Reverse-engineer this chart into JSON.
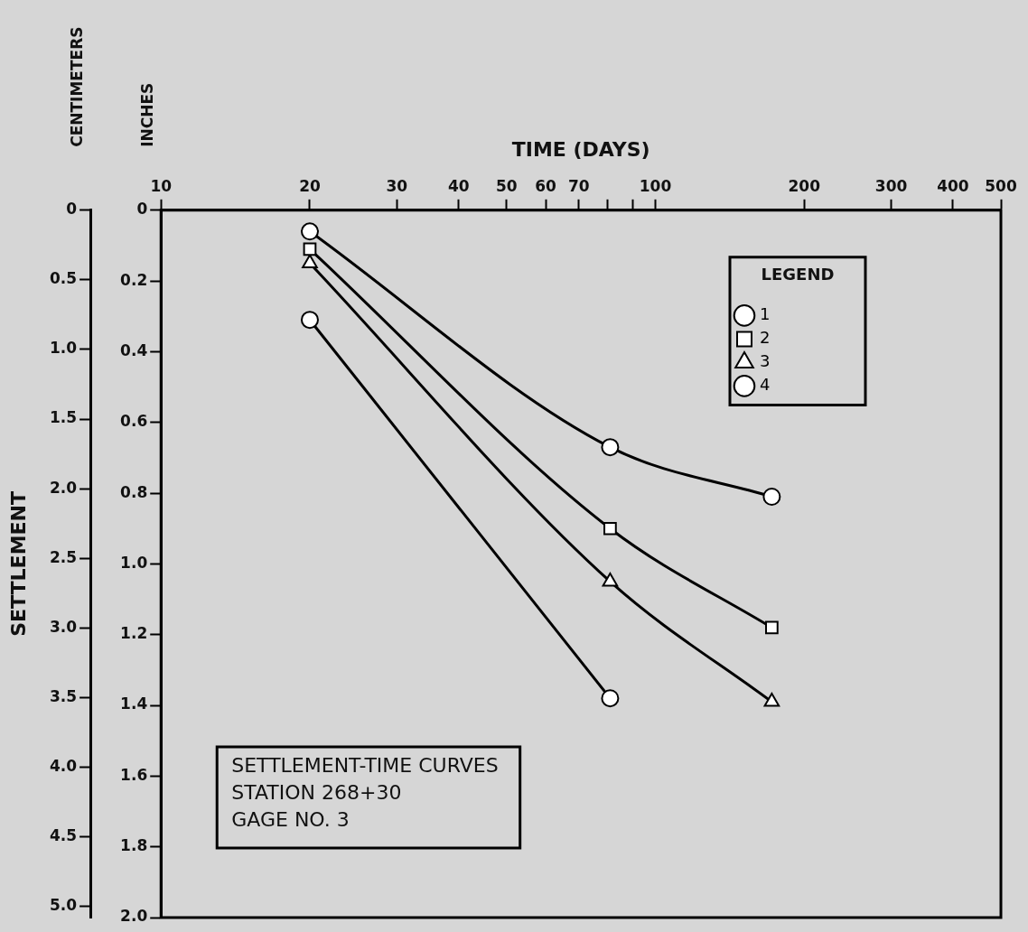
{
  "chart_data": {
    "type": "line",
    "xlabel": "TIME (DAYS)",
    "ylabel": "INCHES",
    "y2label": "CENTIMETERS",
    "legend_title": "LEGEND",
    "legend": "top right",
    "log": "x",
    "line_style": "solid",
    "annotations": [
      "SETTLEMENT",
      "SETTLEMENT-TIME CURVES",
      "STATION 268+30",
      "GAGE NO. 3"
    ],
    "xlim": [
      10,
      500
    ],
    "xticks": [
      10,
      20,
      30,
      40,
      50,
      60,
      70,
      {
        "value": 80,
        "label": null
      },
      {
        "value": 90,
        "label": null
      },
      100,
      200,
      300,
      400,
      500
    ],
    "ylim": [
      2.0,
      0
    ],
    "yticks": [
      0,
      0.2,
      0.4,
      0.6,
      0.8,
      {
        "value": 1,
        "label": "1.0"
      },
      1.2,
      1.4,
      1.6,
      1.8,
      {
        "value": 2,
        "label": "2.0"
      }
    ],
    "y2lim": [
      5.08,
      0
    ],
    "y2ticks": [
      0,
      0.5,
      {
        "value": 1,
        "label": "1.0"
      },
      1.5,
      {
        "value": 2,
        "label": "2.0"
      },
      2.5,
      {
        "value": 3,
        "label": "3.0"
      },
      3.5,
      {
        "value": 4,
        "label": "4.0"
      },
      4.5,
      {
        "value": 5,
        "label": "5.0"
      }
    ],
    "series": [
      {
        "name": "1",
        "color": "#000000",
        "marker": "circle",
        "x": [
          20,
          81,
          172
        ],
        "values": [
          0.06,
          0.67,
          0.81
        ]
      },
      {
        "name": "2",
        "color": "#000000",
        "marker": "square",
        "x": [
          20,
          81,
          172
        ],
        "values": [
          0.11,
          0.9,
          1.18
        ]
      },
      {
        "name": "3",
        "color": "#000000",
        "marker": "triangle",
        "x": [
          20,
          81,
          172
        ],
        "values": [
          0.15,
          1.05,
          1.39
        ]
      },
      {
        "name": "4",
        "color": "#000000",
        "marker": "circle",
        "x": [
          20,
          81
        ],
        "values": [
          0.31,
          1.38
        ]
      }
    ]
  }
}
